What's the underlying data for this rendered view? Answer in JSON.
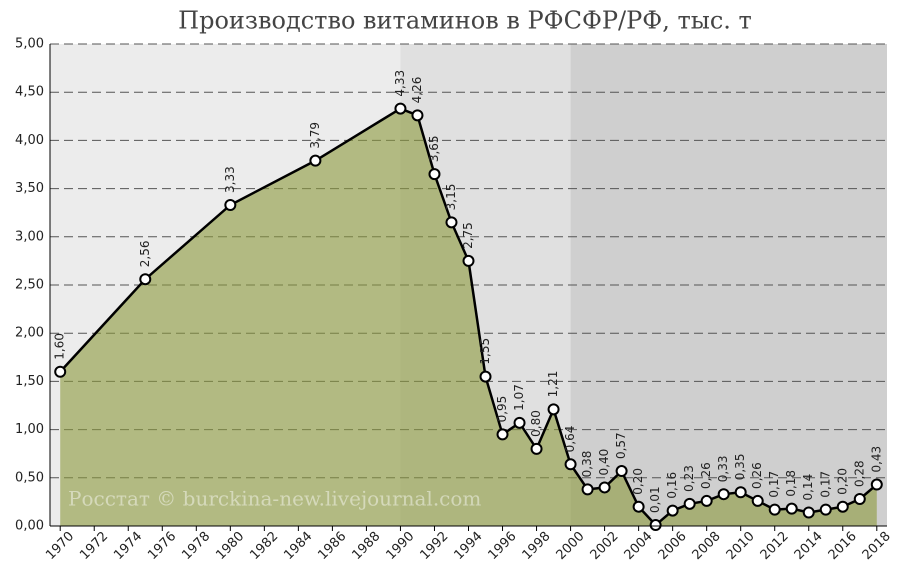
{
  "chart_data": {
    "type": "line",
    "title": "Производство витаминов в РФСФР/РФ, тыс. т",
    "watermark": "Росстат © burckina-new.livejournal.com",
    "x": [
      1970,
      1975,
      1980,
      1985,
      1990,
      1991,
      1992,
      1993,
      1994,
      1995,
      1996,
      1997,
      1998,
      1999,
      2000,
      2001,
      2002,
      2003,
      2004,
      2005,
      2006,
      2007,
      2008,
      2009,
      2010,
      2011,
      2012,
      2013,
      2014,
      2015,
      2016,
      2017,
      2018
    ],
    "series": [
      {
        "name": "Производство витаминов",
        "color": "#000000",
        "values": [
          1.6,
          2.56,
          3.33,
          3.79,
          4.33,
          4.26,
          3.65,
          3.15,
          2.75,
          1.55,
          0.95,
          1.07,
          0.8,
          1.21,
          0.64,
          0.38,
          0.4,
          0.57,
          0.2,
          0.01,
          0.16,
          0.23,
          0.26,
          0.33,
          0.35,
          0.26,
          0.17,
          0.18,
          0.14,
          0.17,
          0.2,
          0.28,
          0.43
        ],
        "value_labels": [
          "1,60",
          "2,56",
          "3,33",
          "3,79",
          "4,33",
          "4,26",
          "3,65",
          "3,15",
          "2,75",
          "1,55",
          "0,95",
          "1,07",
          "0,80",
          "1,21",
          "0,64",
          "0,38",
          "0,40",
          "0,57",
          "0,20",
          "0,01",
          "0,16",
          "0,23",
          "0,26",
          "0,33",
          "0,35",
          "0,26",
          "0,17",
          "0,18",
          "0,14",
          "0,17",
          "0,20",
          "0,28",
          "0,43"
        ]
      }
    ],
    "area_color": "#8c9a3c",
    "shade_breaks": [
      1990,
      2000
    ],
    "shade_colors": [
      "#ececec",
      "#e0e0e0",
      "#cfcfcf"
    ],
    "xlim": [
      1969.4,
      2018.6
    ],
    "xticks": [
      1970,
      1972,
      1974,
      1976,
      1978,
      1980,
      1982,
      1984,
      1986,
      1988,
      1990,
      1992,
      1994,
      1996,
      1998,
      2000,
      2002,
      2004,
      2006,
      2008,
      2010,
      2012,
      2014,
      2016,
      2018
    ],
    "ylim": [
      0,
      5
    ],
    "yticks": [
      {
        "value": 0,
        "label": "0,00"
      },
      {
        "value": 0.5,
        "label": "0,50"
      },
      {
        "value": 1,
        "label": "1,00"
      },
      {
        "value": 1.5,
        "label": "1,50"
      },
      {
        "value": 2,
        "label": "2,00"
      },
      {
        "value": 2.5,
        "label": "2,50"
      },
      {
        "value": 3,
        "label": "3,00"
      },
      {
        "value": 3.5,
        "label": "3,50"
      },
      {
        "value": 4,
        "label": "4,00"
      },
      {
        "value": 4.5,
        "label": "4,50"
      },
      {
        "value": 5,
        "label": "5,00"
      }
    ],
    "grid": true
  }
}
